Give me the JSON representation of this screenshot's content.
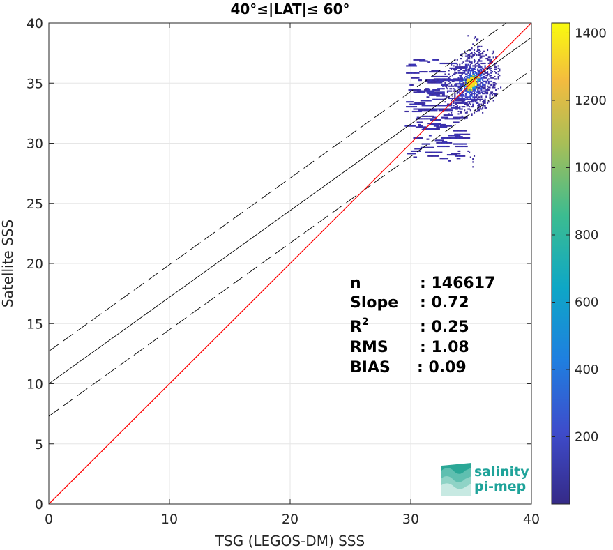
{
  "chart_data": {
    "type": "heatmap",
    "title": "40°≤|LAT|≤ 60°",
    "xlabel": "TSG (LEGOS-DM) SSS",
    "ylabel": "Satellite SSS",
    "xlim": [
      0,
      40
    ],
    "ylim": [
      0,
      40
    ],
    "x_ticks": [
      "0",
      "10",
      "20",
      "30",
      "40"
    ],
    "y_ticks": [
      "0",
      "5",
      "10",
      "15",
      "20",
      "25",
      "30",
      "35",
      "40"
    ],
    "grid": true,
    "identity_line": {
      "slope": 1,
      "intercept": 0,
      "color": "#ff0000"
    },
    "regression_line": {
      "slope": 0.72,
      "intercept": 10.0,
      "color": "#000000"
    },
    "confidence_band_offset": 2.7,
    "density_center": {
      "x": 35,
      "y": 35
    },
    "stats": [
      {
        "label": "n",
        "value": ": 146617"
      },
      {
        "label": "Slope",
        "value": ": 0.72"
      },
      {
        "label": "R",
        "sup": "2",
        "value": ": 0.25"
      },
      {
        "label": "RMS",
        "value": ": 1.08"
      },
      {
        "label": "BIAS",
        "value": ": 0.09"
      }
    ],
    "colorbar": {
      "min": 0,
      "max": 1430,
      "ticks": [
        "200",
        "400",
        "600",
        "800",
        "1000",
        "1200",
        "1400"
      ],
      "colormap": "parula"
    }
  },
  "logo": {
    "line1": "salinity",
    "line2": "pi-mep"
  }
}
